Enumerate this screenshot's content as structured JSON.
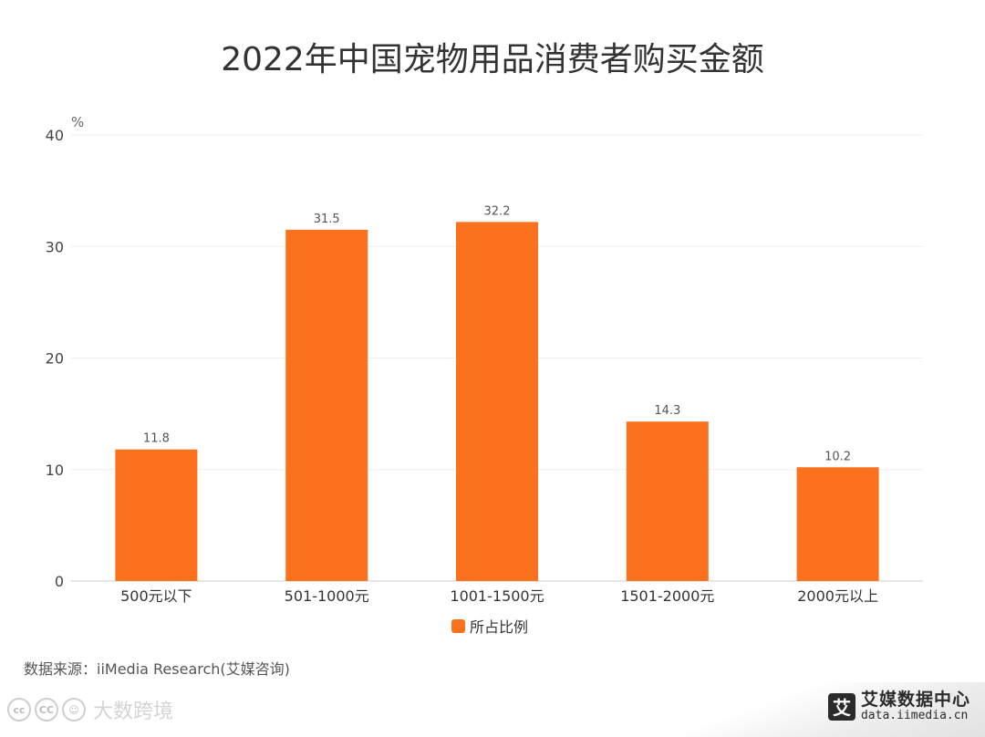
{
  "chart_data": {
    "type": "bar",
    "title": "2022年中国宠物用品消费者购买金额",
    "ylabel": "%",
    "xlabel": "",
    "categories": [
      "500元以下",
      "501-1000元",
      "1001-1500元",
      "1501-2000元",
      "2000元以上"
    ],
    "series": [
      {
        "name": "所占比例",
        "values": [
          11.8,
          31.5,
          32.2,
          14.3,
          10.2
        ],
        "color": "#fa721d"
      }
    ],
    "ylim": [
      0,
      40
    ],
    "yticks": [
      "0",
      "10",
      "20",
      "30",
      "40"
    ],
    "grid": true,
    "legend": "bottom-center",
    "data_labels": [
      "11.8",
      "31.5",
      "32.2",
      "14.3",
      "10.2"
    ]
  },
  "source": "数据来源：iiMedia Research(艾媒咨询)",
  "footer": {
    "watermark": "大数跨境",
    "logo_mark": "艾",
    "logo_name": "艾媒数据中心",
    "logo_url": "data.iimedia.cn",
    "license_icons": [
      "cc-icon",
      "by-icon",
      "person-icon"
    ]
  }
}
